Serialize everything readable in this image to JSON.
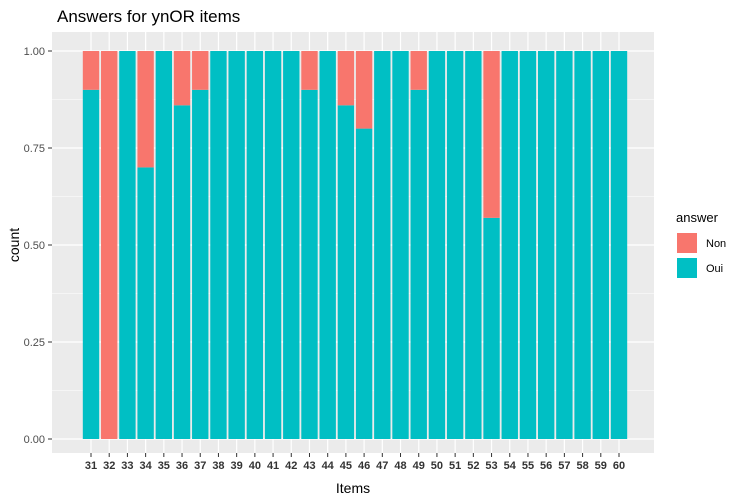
{
  "chart_data": {
    "type": "bar",
    "stacked": true,
    "title": "Answers for ynOR items",
    "xlabel": "Items",
    "ylabel": "count",
    "ylim": [
      0,
      1
    ],
    "yticks": [
      "0.00",
      "0.25",
      "0.50",
      "0.75",
      "1.00"
    ],
    "ytick_values": [
      0,
      0.25,
      0.5,
      0.75,
      1.0
    ],
    "grid": true,
    "legend": {
      "title": "answer",
      "placement": "right"
    },
    "categories": [
      "31",
      "32",
      "33",
      "34",
      "35",
      "36",
      "37",
      "38",
      "39",
      "40",
      "41",
      "42",
      "43",
      "44",
      "45",
      "46",
      "47",
      "48",
      "49",
      "50",
      "51",
      "52",
      "53",
      "54",
      "55",
      "56",
      "57",
      "58",
      "59",
      "60"
    ],
    "series": [
      {
        "name": "Oui",
        "color": "#00BFC4",
        "values": [
          0.9,
          0,
          1,
          0.7,
          1,
          0.86,
          0.9,
          1,
          1,
          1,
          1,
          1,
          0.9,
          1,
          0.86,
          0.8,
          1,
          1,
          0.9,
          1,
          1,
          1,
          0.57,
          1,
          1,
          1,
          1,
          1,
          1,
          1
        ]
      },
      {
        "name": "Non",
        "color": "#F8766D",
        "values": [
          0.1,
          1,
          0,
          0.3,
          0,
          0.14,
          0.1,
          0,
          0,
          0,
          0,
          0,
          0.1,
          0,
          0.14,
          0.2,
          0,
          0,
          0.1,
          0,
          0,
          0,
          0.43,
          0,
          0,
          0,
          0,
          0,
          0,
          0
        ]
      }
    ]
  }
}
